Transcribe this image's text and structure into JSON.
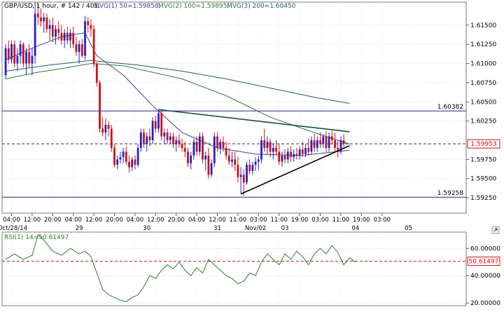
{
  "chart_data": [
    {
      "type": "candlestick",
      "header": {
        "symbol": "GBP/USD",
        "meta": ", 1 hour, # 142 / 401,",
        "ma1": "MVG(1) 50=1.59858,",
        "ma2": "MVG(2) 100=1.59895,",
        "ma3": "MVG(3) 200=1.60450"
      },
      "ylim": [
        1.5905,
        1.618
      ],
      "y_ticks": [
        "1.61500",
        "1.61250",
        "1.61000",
        "1.60750",
        "1.60500",
        "1.60250",
        "1.59750",
        "1.59500",
        "1.59250"
      ],
      "y_tick_values": [
        1.615,
        1.6125,
        1.61,
        1.6075,
        1.605,
        1.6025,
        1.5975,
        1.595,
        1.5925
      ],
      "x_tick_labels": [
        "04:00",
        "12:00",
        "20:00",
        "04:00",
        "12:00",
        "20:00",
        "04:00",
        "12:00",
        "20:00",
        "04:00",
        "12:00",
        "11:00",
        "03:00",
        "11:00",
        "19:00",
        "03:00",
        "11:00",
        "19:00",
        "03:00"
      ],
      "x_tick_index": [
        2,
        9,
        16,
        23,
        30,
        37,
        44,
        51,
        58,
        65,
        72,
        79,
        86,
        93,
        100,
        107,
        114,
        121,
        128
      ],
      "x_date_labels": [
        "Oct/28/14",
        "29",
        "30",
        "31",
        "Nov/02",
        "03",
        "04",
        "05"
      ],
      "x_date_index": [
        0,
        25,
        48,
        72,
        85,
        95,
        119,
        137
      ],
      "levels": [
        {
          "label": "1.60382",
          "value": 1.60382,
          "color": "#1f2f7a"
        },
        {
          "label": "1.59258",
          "value": 1.59258,
          "color": "#1f2f7a"
        }
      ],
      "current": {
        "label": "1.59953",
        "value": 1.59953,
        "color": "#d01010"
      },
      "trendlines": [
        {
          "from": [
            52,
            1.604
          ],
          "to": [
            117,
            1.6011
          ],
          "color": "#1d4d4d"
        },
        {
          "from": [
            80,
            1.593
          ],
          "to": [
            117,
            1.5993
          ],
          "color": "#000000"
        }
      ],
      "ohlc": [
        [
          1.6085,
          1.6125,
          1.608,
          1.612
        ],
        [
          1.612,
          1.613,
          1.61,
          1.6105
        ],
        [
          1.6105,
          1.613,
          1.61,
          1.6125
        ],
        [
          1.6125,
          1.613,
          1.6095,
          1.61
        ],
        [
          1.61,
          1.612,
          1.609,
          1.611
        ],
        [
          1.611,
          1.613,
          1.61,
          1.6125
        ],
        [
          1.6125,
          1.6128,
          1.6095,
          1.61
        ],
        [
          1.61,
          1.612,
          1.6085,
          1.6115
        ],
        [
          1.6115,
          1.6125,
          1.6095,
          1.61
        ],
        [
          1.61,
          1.612,
          1.6085,
          1.611
        ],
        [
          1.611,
          1.618,
          1.61,
          1.6165
        ],
        [
          1.6165,
          1.6178,
          1.615,
          1.616
        ],
        [
          1.616,
          1.6172,
          1.6148,
          1.6155
        ],
        [
          1.6155,
          1.6166,
          1.614,
          1.616
        ],
        [
          1.616,
          1.6165,
          1.614,
          1.6145
        ],
        [
          1.6145,
          1.6158,
          1.613,
          1.615
        ],
        [
          1.615,
          1.616,
          1.6128,
          1.6135
        ],
        [
          1.6135,
          1.615,
          1.6125,
          1.6145
        ],
        [
          1.6145,
          1.6155,
          1.613,
          1.614
        ],
        [
          1.614,
          1.615,
          1.6125,
          1.613
        ],
        [
          1.613,
          1.6145,
          1.612,
          1.614
        ],
        [
          1.614,
          1.6148,
          1.6125,
          1.613
        ],
        [
          1.613,
          1.6145,
          1.612,
          1.614
        ],
        [
          1.614,
          1.6148,
          1.612,
          1.6125
        ],
        [
          1.6125,
          1.6135,
          1.611,
          1.6115
        ],
        [
          1.6115,
          1.613,
          1.61,
          1.6125
        ],
        [
          1.6125,
          1.6132,
          1.6108,
          1.611
        ],
        [
          1.611,
          1.6162,
          1.6105,
          1.6155
        ],
        [
          1.6155,
          1.616,
          1.614,
          1.615
        ],
        [
          1.615,
          1.6158,
          1.6135,
          1.6145
        ],
        [
          1.6145,
          1.615,
          1.6095,
          1.61
        ],
        [
          1.61,
          1.6102,
          1.607,
          1.6075
        ],
        [
          1.6075,
          1.6078,
          1.601,
          1.6015
        ],
        [
          1.6015,
          1.603,
          1.6005,
          1.601
        ],
        [
          1.601,
          1.6028,
          1.6,
          1.602
        ],
        [
          1.602,
          1.6025,
          1.6005,
          1.6015
        ],
        [
          1.6015,
          1.602,
          1.5985,
          1.599
        ],
        [
          1.599,
          1.5995,
          1.5965,
          1.5968
        ],
        [
          1.5968,
          1.598,
          1.5962,
          1.5975
        ],
        [
          1.5975,
          1.5985,
          1.597,
          1.5978
        ],
        [
          1.5978,
          1.599,
          1.597,
          1.5985
        ],
        [
          1.5985,
          1.5992,
          1.5968,
          1.5972
        ],
        [
          1.5972,
          1.598,
          1.5958,
          1.5965
        ],
        [
          1.5965,
          1.5978,
          1.596,
          1.5975
        ],
        [
          1.5975,
          1.598,
          1.5962,
          1.5968
        ],
        [
          1.5968,
          1.5995,
          1.5965,
          1.599
        ],
        [
          1.599,
          1.6015,
          1.5985,
          1.601
        ],
        [
          1.601,
          1.6015,
          1.599,
          1.5995
        ],
        [
          1.5995,
          1.601,
          1.5985,
          1.6005
        ],
        [
          1.6005,
          1.6015,
          1.5992,
          1.6
        ],
        [
          1.6,
          1.603,
          1.5995,
          1.6025
        ],
        [
          1.6025,
          1.6032,
          1.601,
          1.6015
        ],
        [
          1.6015,
          1.604,
          1.601,
          1.6035
        ],
        [
          1.6035,
          1.604,
          1.6,
          1.6005
        ],
        [
          1.6005,
          1.6015,
          1.5995,
          1.601
        ],
        [
          1.601,
          1.6015,
          1.5995,
          1.6
        ],
        [
          1.6,
          1.601,
          1.5995,
          1.6005
        ],
        [
          1.6005,
          1.601,
          1.599,
          1.5995
        ],
        [
          1.5995,
          1.6005,
          1.5985,
          1.6
        ],
        [
          1.6,
          1.6008,
          1.599,
          1.5995
        ],
        [
          1.5995,
          1.6002,
          1.5985,
          1.599
        ],
        [
          1.599,
          1.5998,
          1.5978,
          1.5985
        ],
        [
          1.5985,
          1.599,
          1.5965,
          1.597
        ],
        [
          1.597,
          1.5985,
          1.5962,
          1.598
        ],
        [
          1.598,
          1.6002,
          1.5975,
          1.5998
        ],
        [
          1.5998,
          1.6005,
          1.598,
          1.5985
        ],
        [
          1.5985,
          1.601,
          1.598,
          1.6005
        ],
        [
          1.6005,
          1.601,
          1.597,
          1.5975
        ],
        [
          1.5975,
          1.5985,
          1.596,
          1.598
        ],
        [
          1.598,
          1.599,
          1.595,
          1.5955
        ],
        [
          1.5955,
          1.5975,
          1.5952,
          1.597
        ],
        [
          1.597,
          1.601,
          1.5965,
          1.6005
        ],
        [
          1.6005,
          1.601,
          1.5985,
          1.599
        ],
        [
          1.599,
          1.6002,
          1.5982,
          1.5998
        ],
        [
          1.5998,
          1.6005,
          1.5985,
          1.599
        ],
        [
          1.599,
          1.5998,
          1.5975,
          1.598
        ],
        [
          1.598,
          1.599,
          1.5968,
          1.5972
        ],
        [
          1.5972,
          1.5985,
          1.5965,
          1.5975
        ],
        [
          1.5975,
          1.5985,
          1.596,
          1.5968
        ],
        [
          1.5968,
          1.5978,
          1.5945,
          1.5952
        ],
        [
          1.5952,
          1.5965,
          1.593,
          1.5955
        ],
        [
          1.5955,
          1.5962,
          1.5928,
          1.5945
        ],
        [
          1.5945,
          1.5972,
          1.5942,
          1.5968
        ],
        [
          1.5968,
          1.5975,
          1.5955,
          1.596
        ],
        [
          1.596,
          1.5972,
          1.5955,
          1.5968
        ],
        [
          1.5968,
          1.5978,
          1.596,
          1.5972
        ],
        [
          1.5972,
          1.598,
          1.5962,
          1.5975
        ],
        [
          1.5975,
          1.6005,
          1.597,
          1.6
        ],
        [
          1.6,
          1.6015,
          1.5985,
          1.599
        ],
        [
          1.599,
          1.6005,
          1.5982,
          1.5998
        ],
        [
          1.5998,
          1.6002,
          1.5978,
          1.5985
        ],
        [
          1.5985,
          1.5995,
          1.5975,
          1.599
        ],
        [
          1.599,
          1.6,
          1.598,
          1.5985
        ],
        [
          1.5985,
          1.5995,
          1.5968,
          1.5972
        ],
        [
          1.5972,
          1.5985,
          1.5965,
          1.598
        ],
        [
          1.598,
          1.5988,
          1.597,
          1.5975
        ],
        [
          1.5975,
          1.599,
          1.597,
          1.5985
        ],
        [
          1.5985,
          1.5992,
          1.5972,
          1.5978
        ],
        [
          1.5978,
          1.5988,
          1.5972,
          1.5982
        ],
        [
          1.5982,
          1.599,
          1.5975,
          1.598
        ],
        [
          1.598,
          1.5992,
          1.5975,
          1.5988
        ],
        [
          1.5988,
          1.5998,
          1.5978,
          1.5982
        ],
        [
          1.5982,
          1.5995,
          1.5978,
          1.599
        ],
        [
          1.599,
          1.6002,
          1.598,
          1.5985
        ],
        [
          1.5985,
          1.6005,
          1.5982,
          1.6
        ],
        [
          1.6,
          1.6008,
          1.5985,
          1.599
        ],
        [
          1.599,
          1.6005,
          1.5985,
          1.6
        ],
        [
          1.6,
          1.601,
          1.599,
          1.5995
        ],
        [
          1.5995,
          1.6008,
          1.599,
          1.6005
        ],
        [
          1.6005,
          1.6012,
          1.5985,
          1.599
        ],
        [
          1.599,
          1.601,
          1.5985,
          1.6005
        ],
        [
          1.6005,
          1.6012,
          1.5995,
          1.6
        ],
        [
          1.6,
          1.601,
          1.5985,
          1.599
        ],
        [
          1.599,
          1.6,
          1.5978,
          1.5985
        ],
        [
          1.5985,
          1.6005,
          1.5982,
          1.6
        ],
        [
          1.6,
          1.6008,
          1.5988,
          1.5995
        ]
      ],
      "series": [
        {
          "name": "MVG(1) 50",
          "color": "#3b3b9a",
          "points": [
            [
              0,
              1.6105
            ],
            [
              9,
              1.612
            ],
            [
              19,
              1.6135
            ],
            [
              27,
              1.614
            ],
            [
              31,
              1.611
            ],
            [
              40,
              1.6085
            ],
            [
              50,
              1.6045
            ],
            [
              60,
              1.601
            ],
            [
              72,
              1.599
            ],
            [
              85,
              1.5982
            ],
            [
              100,
              1.598
            ],
            [
              110,
              1.5984
            ],
            [
              117,
              1.5987
            ]
          ]
        },
        {
          "name": "MVG(2) 100",
          "color": "#2e7d32",
          "points": [
            [
              0,
              1.608
            ],
            [
              10,
              1.6088
            ],
            [
              20,
              1.6094
            ],
            [
              29,
              1.61
            ],
            [
              40,
              1.6097
            ],
            [
              60,
              1.608
            ],
            [
              75,
              1.6058
            ],
            [
              90,
              1.603
            ],
            [
              105,
              1.601
            ],
            [
              117,
              1.5995
            ]
          ]
        },
        {
          "name": "MVG(3) 200",
          "color": "#1d5a6e",
          "points": [
            [
              0,
              1.609
            ],
            [
              15,
              1.6098
            ],
            [
              29,
              1.6104
            ],
            [
              45,
              1.6098
            ],
            [
              60,
              1.609
            ],
            [
              75,
              1.608
            ],
            [
              90,
              1.6068
            ],
            [
              105,
              1.6056
            ],
            [
              117,
              1.6048
            ]
          ]
        }
      ]
    },
    {
      "type": "line",
      "header": {
        "label": "RSI(1) 14=50.61497"
      },
      "ylim": [
        18,
        72
      ],
      "y_ticks": [
        "60.00000",
        "40.00000",
        "20.00000"
      ],
      "y_tick_values": [
        60,
        40,
        20
      ],
      "levels": [
        {
          "label": "50.61497",
          "value": 50.61497,
          "color": "#d01010"
        }
      ],
      "series": [
        {
          "name": "RSI(1) 14",
          "color": "#2e7d32",
          "points": [
            [
              0,
              52
            ],
            [
              3,
              56
            ],
            [
              6,
              52
            ],
            [
              9,
              55
            ],
            [
              11,
              70
            ],
            [
              13,
              66
            ],
            [
              16,
              58
            ],
            [
              19,
              55
            ],
            [
              22,
              60
            ],
            [
              25,
              56
            ],
            [
              27,
              58
            ],
            [
              29,
              54
            ],
            [
              31,
              42
            ],
            [
              33,
              30
            ],
            [
              35,
              26
            ],
            [
              37,
              24
            ],
            [
              39,
              22
            ],
            [
              41,
              21
            ],
            [
              43,
              24
            ],
            [
              45,
              26
            ],
            [
              47,
              32
            ],
            [
              49,
              40
            ],
            [
              51,
              38
            ],
            [
              53,
              44
            ],
            [
              55,
              48
            ],
            [
              57,
              45
            ],
            [
              59,
              50
            ],
            [
              61,
              44
            ],
            [
              63,
              40
            ],
            [
              65,
              46
            ],
            [
              67,
              42
            ],
            [
              69,
              52
            ],
            [
              71,
              48
            ],
            [
              73,
              44
            ],
            [
              75,
              40
            ],
            [
              77,
              38
            ],
            [
              79,
              34
            ],
            [
              81,
              36
            ],
            [
              83,
              42
            ],
            [
              85,
              40
            ],
            [
              87,
              50
            ],
            [
              89,
              56
            ],
            [
              91,
              52
            ],
            [
              93,
              48
            ],
            [
              95,
              56
            ],
            [
              97,
              52
            ],
            [
              99,
              58
            ],
            [
              101,
              54
            ],
            [
              103,
              48
            ],
            [
              105,
              56
            ],
            [
              107,
              60
            ],
            [
              109,
              56
            ],
            [
              111,
              62
            ],
            [
              113,
              57
            ],
            [
              115,
              48
            ],
            [
              117,
              53
            ],
            [
              119,
              50
            ]
          ]
        }
      ]
    }
  ]
}
